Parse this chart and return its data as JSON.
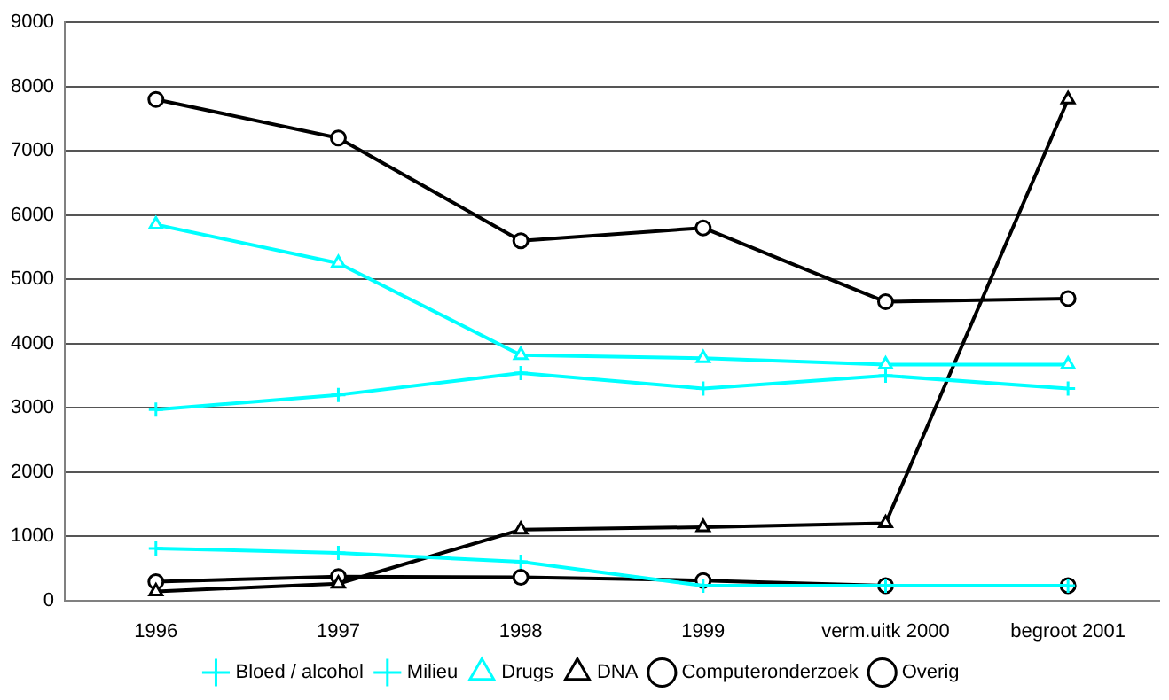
{
  "chart_data": {
    "type": "line",
    "categories": [
      "1996",
      "1997",
      "1998",
      "1999",
      "verm.uitk 2000",
      "begroot 2001"
    ],
    "ylim": [
      0,
      9000
    ],
    "yticks": [
      0,
      1000,
      2000,
      3000,
      4000,
      5000,
      6000,
      7000,
      8000,
      9000
    ],
    "grid": "y",
    "legend": "bottom",
    "line_style": "solid",
    "series": [
      {
        "name": "Bloed / alcohol",
        "color": "#00ffff",
        "marker": "cross",
        "values": [
          2970,
          3200,
          3540,
          3300,
          3500,
          3300
        ]
      },
      {
        "name": "Milieu",
        "color": "#00ffff",
        "marker": "cross",
        "values": [
          810,
          740,
          600,
          230,
          230,
          230
        ]
      },
      {
        "name": "Drugs",
        "color": "#00ffff",
        "marker": "triangle",
        "values": [
          5850,
          5250,
          3820,
          3770,
          3670,
          3670
        ]
      },
      {
        "name": "DNA",
        "color": "#000000",
        "marker": "triangle",
        "values": [
          140,
          260,
          1100,
          1140,
          1200,
          7800
        ]
      },
      {
        "name": "Computeronderzoek",
        "color": "#000000",
        "marker": "circle",
        "values": [
          290,
          370,
          360,
          310,
          230,
          230
        ]
      },
      {
        "name": "Overig",
        "color": "#000000",
        "marker": "circle",
        "values": [
          7800,
          7200,
          5600,
          5800,
          4650,
          4700
        ]
      }
    ]
  }
}
